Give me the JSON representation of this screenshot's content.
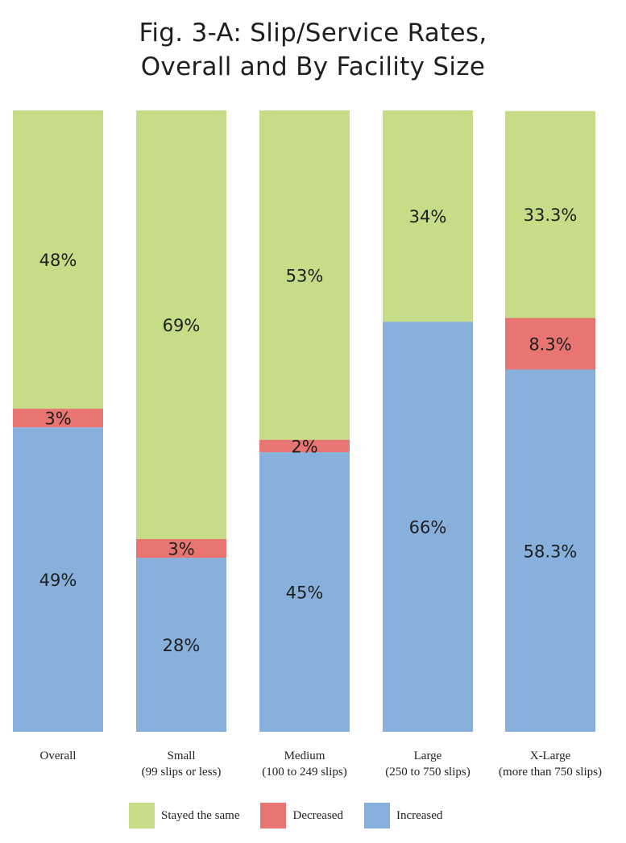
{
  "title_lines": [
    "Fig. 3-A: Slip/Service Rates,",
    "Overall and By Facility Size"
  ],
  "chart_data": {
    "type": "bar",
    "stacked": true,
    "orientation": "vertical",
    "title": "Fig. 3-A: Slip/Service Rates, Overall and By Facility Size",
    "categories": [
      [
        "Overall"
      ],
      [
        "Small",
        "(99 slips or less)"
      ],
      [
        "Medium",
        "(100 to 249 slips)"
      ],
      [
        "Large",
        "(250 to 750 slips)"
      ],
      [
        "X-Large",
        "(more than 750 slips)"
      ]
    ],
    "series": [
      {
        "name": "Increased",
        "color": "#87b0dc",
        "values": [
          49,
          28,
          45,
          66,
          58.3
        ],
        "labels": [
          "49%",
          "28%",
          "45%",
          "66%",
          "58.3%"
        ]
      },
      {
        "name": "Decreased",
        "color": "#e87572",
        "values": [
          3,
          3,
          2,
          0,
          8.3
        ],
        "labels": [
          "3%",
          "3%",
          "2%",
          "",
          "8.3%"
        ]
      },
      {
        "name": "Stayed the same",
        "color": "#c6dc87",
        "values": [
          48,
          69,
          53,
          34,
          33.3
        ],
        "labels": [
          "48%",
          "69%",
          "53%",
          "34%",
          "33.3%"
        ]
      }
    ],
    "ylim": [
      0,
      100
    ],
    "grid": false,
    "legend": {
      "placement": "bottom",
      "items": [
        {
          "label": "Stayed the same",
          "color": "#c6dc87"
        },
        {
          "label": "Decreased",
          "color": "#e87572"
        },
        {
          "label": "Increased",
          "color": "#87b0dc"
        }
      ]
    }
  }
}
